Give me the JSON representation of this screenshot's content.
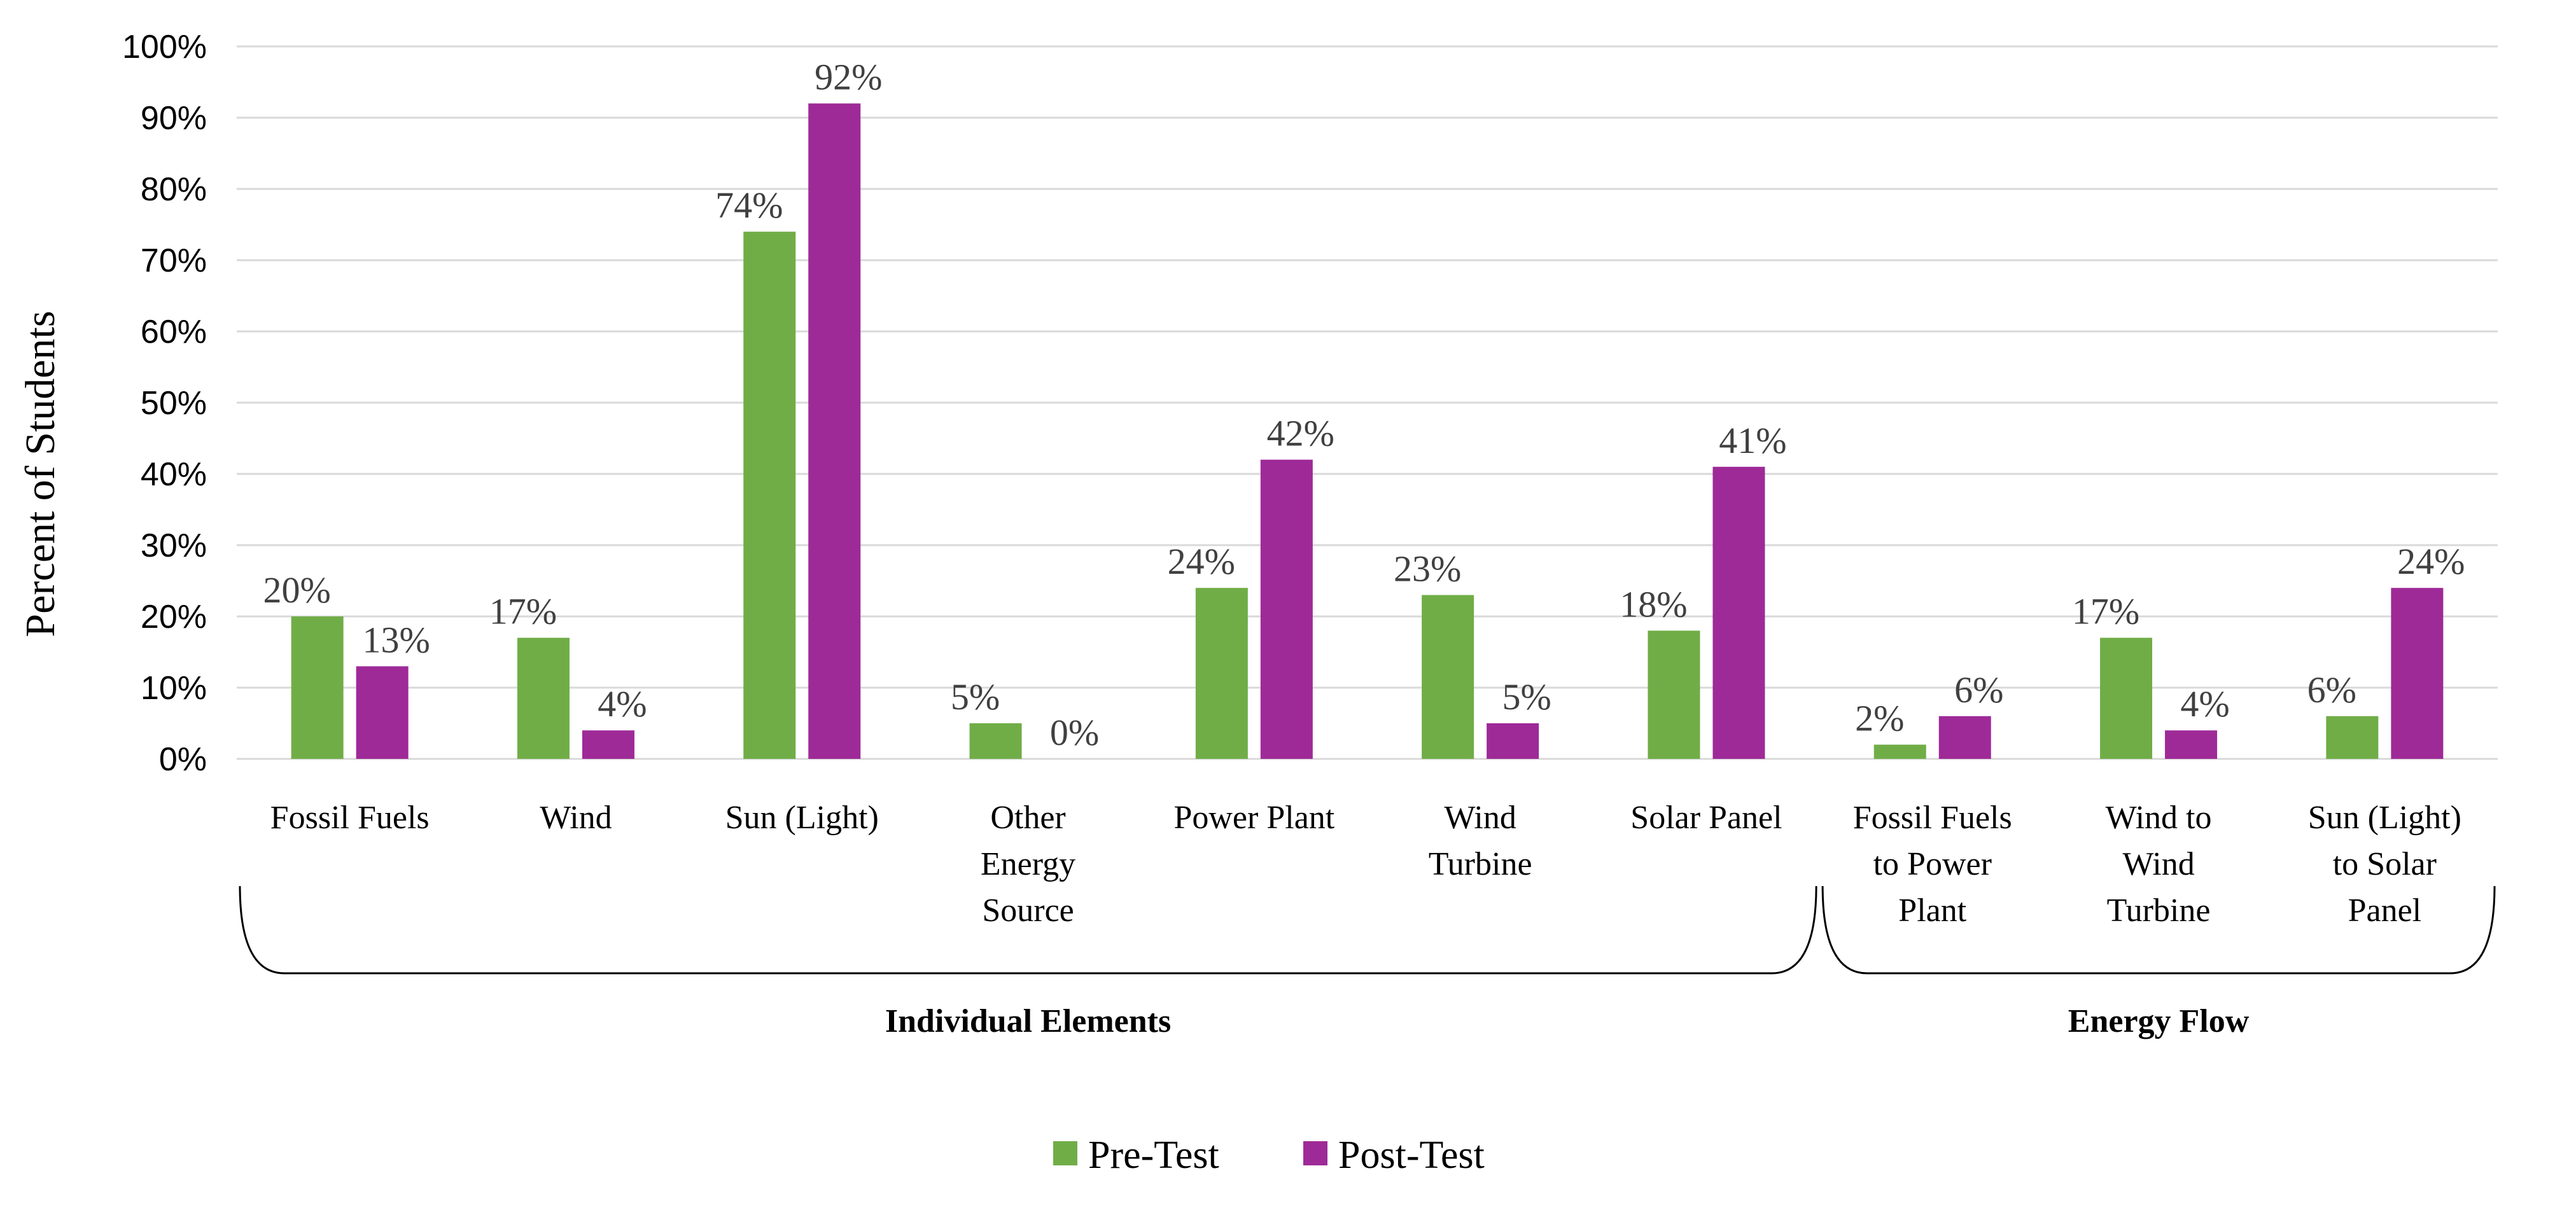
{
  "chart_data": {
    "type": "bar",
    "ylabel": "Percent of Students",
    "ylim": [
      0,
      100
    ],
    "y_ticks": [
      "0%",
      "10%",
      "20%",
      "30%",
      "40%",
      "50%",
      "60%",
      "70%",
      "80%",
      "90%",
      "100%"
    ],
    "grid": true,
    "legend_position": "bottom",
    "categories": [
      [
        "Fossil Fuels"
      ],
      [
        "Wind"
      ],
      [
        "Sun (Light)"
      ],
      [
        "Other",
        "Energy",
        "Source"
      ],
      [
        "Power Plant"
      ],
      [
        "Wind",
        "Turbine"
      ],
      [
        "Solar Panel"
      ],
      [
        "Fossil Fuels",
        "to Power",
        "Plant"
      ],
      [
        "Wind to",
        "Wind",
        "Turbine"
      ],
      [
        "Sun (Light)",
        "to Solar",
        "Panel"
      ]
    ],
    "series": [
      {
        "name": "Pre-Test",
        "color": "#70ad47",
        "values": [
          20,
          17,
          74,
          5,
          24,
          23,
          18,
          2,
          17,
          6
        ],
        "labels": [
          "20%",
          "17%",
          "74%",
          "5%",
          "24%",
          "23%",
          "18%",
          "2%",
          "17%",
          "6%"
        ]
      },
      {
        "name": "Post-Test",
        "color": "#9e2a98",
        "values": [
          13,
          4,
          92,
          0,
          42,
          5,
          41,
          6,
          4,
          24
        ],
        "labels": [
          "13%",
          "4%",
          "92%",
          "0%",
          "42%",
          "5%",
          "41%",
          "6%",
          "4%",
          "24%"
        ]
      }
    ],
    "groups": [
      {
        "label": "Individual Elements",
        "from": 0,
        "to": 6
      },
      {
        "label": "Energy Flow",
        "from": 7,
        "to": 9
      }
    ]
  }
}
